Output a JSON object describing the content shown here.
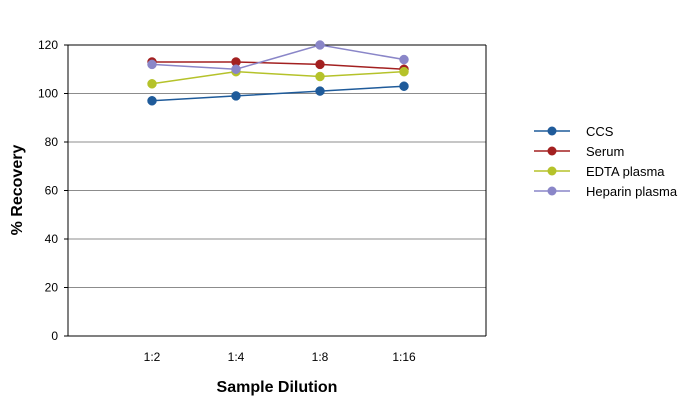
{
  "chart_data": {
    "type": "line",
    "title": "",
    "xlabel": "Sample Dilution",
    "ylabel": "% Recovery",
    "categories": [
      "1:2",
      "1:4",
      "1:8",
      "1:16"
    ],
    "ylim": [
      0,
      120
    ],
    "yticks": [
      0,
      20,
      40,
      60,
      80,
      100,
      120
    ],
    "grid": true,
    "legend_position": "right",
    "series": [
      {
        "name": "CCS",
        "color": "#1f5b9a",
        "values": [
          97,
          99,
          101,
          103
        ]
      },
      {
        "name": "Serum",
        "color": "#a32020",
        "values": [
          113,
          113,
          112,
          110
        ]
      },
      {
        "name": "EDTA plasma",
        "color": "#b5c22a",
        "values": [
          104,
          109,
          107,
          109
        ]
      },
      {
        "name": "Heparin plasma",
        "color": "#8a86c8",
        "values": [
          112,
          110,
          120,
          114
        ]
      }
    ]
  }
}
